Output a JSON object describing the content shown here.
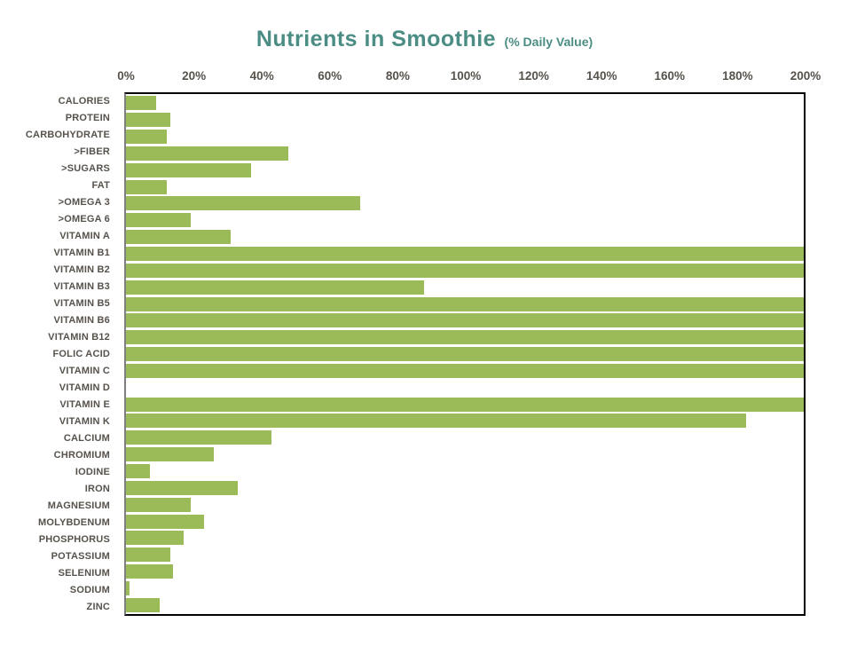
{
  "chart_data": {
    "type": "bar",
    "orientation": "horizontal",
    "title": "Nutrients in Smoothie",
    "title_suffix": "(% Daily Value)",
    "categories": [
      "CALORIES",
      "PROTEIN",
      "CARBOHYDRATE",
      ">FIBER",
      ">SUGARS",
      "FAT",
      ">OMEGA 3",
      ">OMEGA 6",
      "VITAMIN A",
      "VITAMIN B1",
      "VITAMIN B2",
      "VITAMIN B3",
      "VITAMIN B5",
      "VITAMIN B6",
      "VITAMIN B12",
      "FOLIC ACID",
      "VITAMIN C",
      "VITAMIN D",
      "VITAMIN E",
      "VITAMIN K",
      "CALCIUM",
      "CHROMIUM",
      "IODINE",
      "IRON",
      "MAGNESIUM",
      "MOLYBDENUM",
      "PHOSPHORUS",
      "POTASSIUM",
      "SELENIUM",
      "SODIUM",
      "ZINC"
    ],
    "values": [
      9,
      13,
      12,
      48,
      37,
      12,
      69,
      19,
      31,
      200,
      200,
      88,
      200,
      200,
      200,
      200,
      200,
      0,
      200,
      183,
      43,
      26,
      7,
      33,
      19,
      23,
      17,
      13,
      14,
      1,
      10
    ],
    "x_tick_labels": [
      "0%",
      "20%",
      "40%",
      "60%",
      "80%",
      "100%",
      "120%",
      "140%",
      "160%",
      "180%",
      "200%"
    ],
    "xlim": [
      0,
      200
    ],
    "grid": false,
    "legend": "none",
    "bar_color": "#9bbb59",
    "title_color": "#4b8d84",
    "text_color": "#57524c",
    "plot_border_color": "#000000",
    "y_axis_line_color": "#7f7f7f"
  }
}
